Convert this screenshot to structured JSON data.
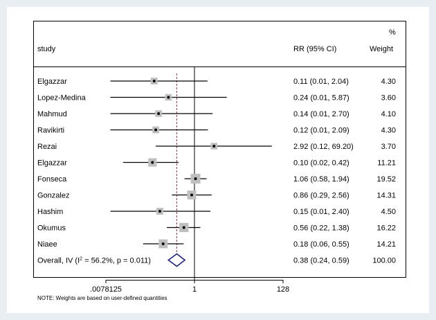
{
  "chart_data": {
    "type": "forest",
    "title": "",
    "columns": {
      "study": "study",
      "rr": "RR (95% CI)",
      "weight_top": "%",
      "weight": "Weight"
    },
    "xscale": "log2",
    "xlim": [
      0.0078125,
      128
    ],
    "xticks": [
      {
        "value": 0.0078125,
        "label": ".0078125"
      },
      {
        "value": 1,
        "label": "1"
      },
      {
        "value": 128,
        "label": "128"
      }
    ],
    "null_line": 1,
    "pooled_line": 0.38,
    "studies": [
      {
        "name": "Elgazzar",
        "rr": 0.11,
        "lo": 0.01,
        "hi": 2.04,
        "rr_label": "0.11 (0.01, 2.04)",
        "weight": 4.3,
        "weight_label": "4.30"
      },
      {
        "name": "Lopez-Medina",
        "rr": 0.24,
        "lo": 0.01,
        "hi": 5.87,
        "rr_label": "0.24 (0.01, 5.87)",
        "weight": 3.6,
        "weight_label": "3.60"
      },
      {
        "name": "Mahmud",
        "rr": 0.14,
        "lo": 0.01,
        "hi": 2.7,
        "rr_label": "0.14 (0.01, 2.70)",
        "weight": 4.1,
        "weight_label": "4.10"
      },
      {
        "name": "Ravikirti",
        "rr": 0.12,
        "lo": 0.01,
        "hi": 2.09,
        "rr_label": "0.12 (0.01, 2.09)",
        "weight": 4.3,
        "weight_label": "4.30"
      },
      {
        "name": "Rezai",
        "rr": 2.92,
        "lo": 0.12,
        "hi": 69.2,
        "rr_label": "2.92 (0.12, 69.20)",
        "weight": 3.7,
        "weight_label": "3.70"
      },
      {
        "name": "Elgazzar",
        "rr": 0.1,
        "lo": 0.02,
        "hi": 0.42,
        "rr_label": "0.10 (0.02, 0.42)",
        "weight": 11.21,
        "weight_label": "11.21"
      },
      {
        "name": "Fonseca",
        "rr": 1.06,
        "lo": 0.58,
        "hi": 1.94,
        "rr_label": "1.06 (0.58, 1.94)",
        "weight": 19.52,
        "weight_label": "19.52"
      },
      {
        "name": "Gonzalez",
        "rr": 0.86,
        "lo": 0.29,
        "hi": 2.56,
        "rr_label": "0.86 (0.29, 2.56)",
        "weight": 14.31,
        "weight_label": "14.31"
      },
      {
        "name": "Hashim",
        "rr": 0.15,
        "lo": 0.01,
        "hi": 2.4,
        "rr_label": "0.15 (0.01, 2.40)",
        "weight": 4.5,
        "weight_label": "4.50"
      },
      {
        "name": "Okumus",
        "rr": 0.56,
        "lo": 0.22,
        "hi": 1.38,
        "rr_label": "0.56 (0.22, 1.38)",
        "weight": 16.22,
        "weight_label": "16.22"
      },
      {
        "name": "Niaee",
        "rr": 0.18,
        "lo": 0.06,
        "hi": 0.55,
        "rr_label": "0.18 (0.06, 0.55)",
        "weight": 14.21,
        "weight_label": "14.21"
      }
    ],
    "overall": {
      "label_prefix": "Overall, IV (I",
      "label_sup": "2",
      "label_suffix": " = 56.2%, p = 0.011)",
      "rr": 0.38,
      "lo": 0.24,
      "hi": 0.59,
      "rr_label": "0.38 (0.24, 0.59)",
      "weight_label": "100.00"
    },
    "note": "NOTE: Weights are based on user-defined quantities",
    "colors": {
      "ci": "#000000",
      "box": "#bfbfbf",
      "diamond": "#1a237e",
      "pooled": "#a0325a",
      "border": "#000000"
    }
  }
}
